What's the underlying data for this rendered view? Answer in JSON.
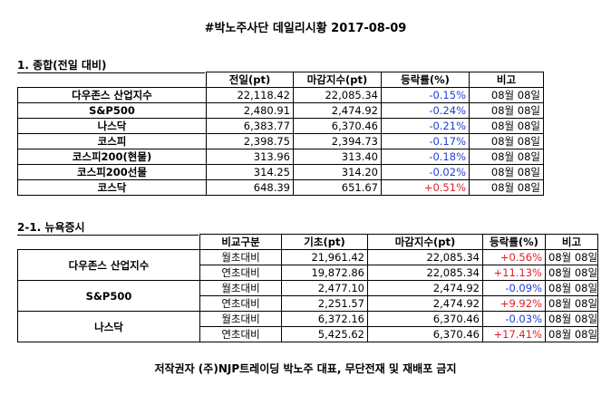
{
  "title": "#박노주사단 데일리시황 2017-08-09",
  "section1": {
    "heading": "1. 종합(전일 대비)",
    "headers": [
      "",
      "전일(pt)",
      "마감지수(pt)",
      "등락률(%)",
      "비고"
    ],
    "rows": [
      {
        "name": "다우존스 산업지수",
        "prev": "22,118.42",
        "close": "22,085.34",
        "change": "-0.15%",
        "note": "08월 08일",
        "sign": "neg"
      },
      {
        "name": "S&P500",
        "prev": "2,480.91",
        "close": "2,474.92",
        "change": "-0.24%",
        "note": "08월 08일",
        "sign": "neg"
      },
      {
        "name": "나스닥",
        "prev": "6,383.77",
        "close": "6,370.46",
        "change": "-0.21%",
        "note": "08월 08일",
        "sign": "neg"
      },
      {
        "name": "코스피",
        "prev": "2,398.75",
        "close": "2,394.73",
        "change": "-0.17%",
        "note": "08월 08일",
        "sign": "neg"
      },
      {
        "name": "코스피200(현물)",
        "prev": "313.96",
        "close": "313.40",
        "change": "-0.18%",
        "note": "08월 08일",
        "sign": "neg"
      },
      {
        "name": "코스피200선물",
        "prev": "314.25",
        "close": "314.20",
        "change": "-0.02%",
        "note": "08월 08일",
        "sign": "neg"
      },
      {
        "name": "코스닥",
        "prev": "648.39",
        "close": "651.67",
        "change": "+0.51%",
        "note": "08월 08일",
        "sign": "pos"
      }
    ]
  },
  "section2": {
    "heading": "2-1. 뉴욕증시",
    "headers": [
      "",
      "비교구분",
      "기초(pt)",
      "마감지수(pt)",
      "등락률(%)",
      "비고"
    ],
    "groups": [
      {
        "name": "다우존스 산업지수",
        "rows": [
          {
            "type": "월초대비",
            "base": "21,961.42",
            "close": "22,085.34",
            "change": "+0.56%",
            "note": "08월 08일",
            "sign": "pos"
          },
          {
            "type": "연초대비",
            "base": "19,872.86",
            "close": "22,085.34",
            "change": "+11.13%",
            "note": "08월 08일",
            "sign": "pos"
          }
        ]
      },
      {
        "name": "S&P500",
        "rows": [
          {
            "type": "월초대비",
            "base": "2,477.10",
            "close": "2,474.92",
            "change": "-0.09%",
            "note": "08월 08일",
            "sign": "neg"
          },
          {
            "type": "연초대비",
            "base": "2,251.57",
            "close": "2,474.92",
            "change": "+9.92%",
            "note": "08월 08일",
            "sign": "pos"
          }
        ]
      },
      {
        "name": "나스닥",
        "rows": [
          {
            "type": "월초대비",
            "base": "6,372.16",
            "close": "6,370.46",
            "change": "-0.03%",
            "note": "08월 08일",
            "sign": "neg"
          },
          {
            "type": "연초대비",
            "base": "5,425.62",
            "close": "6,370.46",
            "change": "+17.41%",
            "note": "08월 08일",
            "sign": "pos"
          }
        ]
      }
    ]
  },
  "footer": "저작권자 (주)NJP트레이딩 박노주 대표, 무단전재 및 재배포 금지"
}
